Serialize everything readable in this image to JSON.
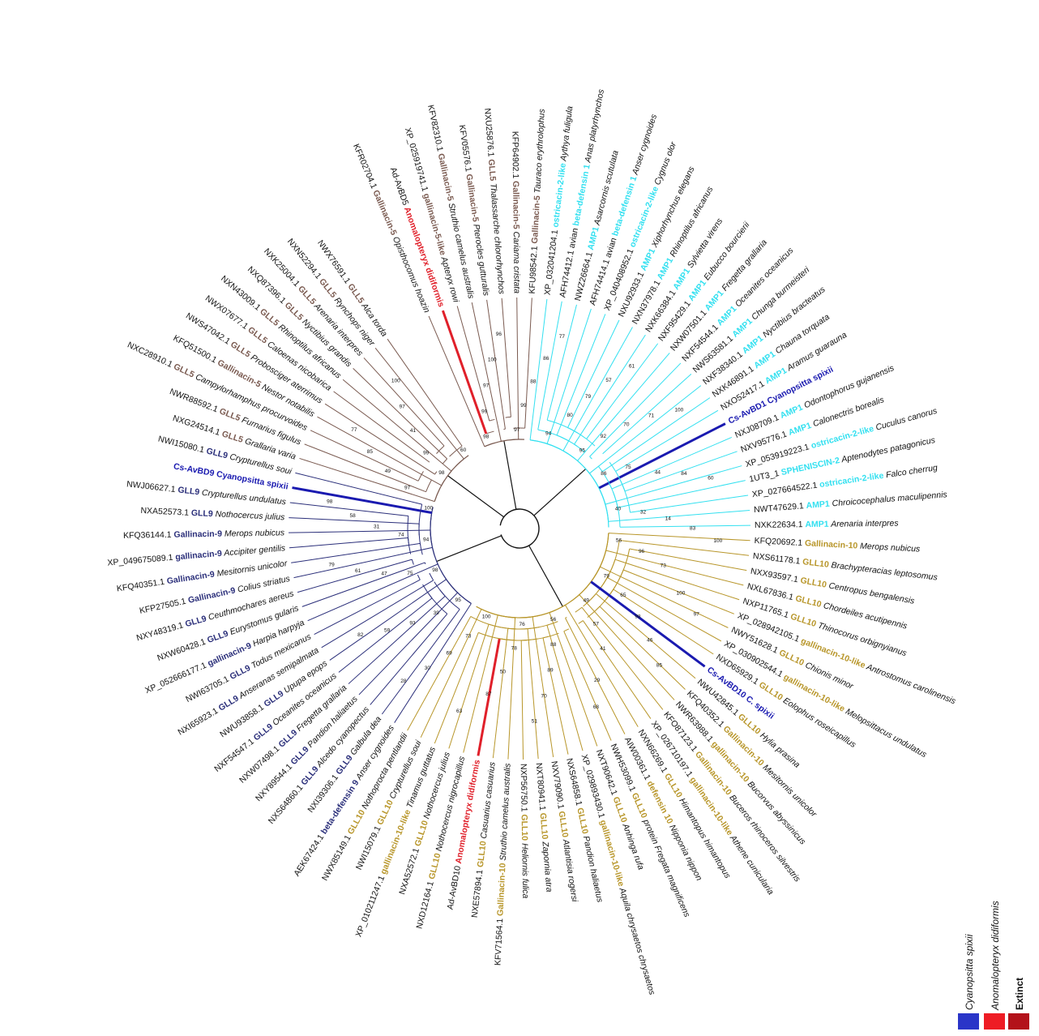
{
  "colors": {
    "clade_gll5": "#7a5a50",
    "clade_gll9": "#2b2f7a",
    "clade_ampl": "#33e0f0",
    "clade_gll10": "#b8962a",
    "highlight_spixii": "#1a1ab0",
    "highlight_extinct": "#e0202a",
    "trunk": "#111111"
  },
  "legend": {
    "items": [
      {
        "label": "Cyanopsitta spixii",
        "color": "#2a35c8"
      },
      {
        "label": "Anomalopteryx didiformis",
        "color": "#ee1c24"
      },
      {
        "label": "Extinct",
        "color": "#b3121a"
      }
    ]
  },
  "leaves": [
    {
      "acc": "KFR02704.1",
      "gene": "Gallinacin-5",
      "sp": "Opisthocomus hoazin",
      "clade": "gll5"
    },
    {
      "acc": "Ad-AvBD5",
      "gene": "Anomalopteryx didiformis",
      "sp": "",
      "clade": "extinct"
    },
    {
      "acc": "XP_025919741.1",
      "gene": "gallinacin-5-like",
      "sp": "Apteryx rowi",
      "clade": "gll5"
    },
    {
      "acc": "KFV82310.1",
      "gene": "Gallinacin-5",
      "sp": "Struthio camelus australis",
      "clade": "gll5"
    },
    {
      "acc": "KFV05576.1",
      "gene": "Gallinacin-5",
      "sp": "Pterocles gutturalis",
      "clade": "gll5"
    },
    {
      "acc": "NXU25876.1",
      "gene": "GLL5",
      "sp": "Thalassarche chlororhynchos",
      "clade": "gll5"
    },
    {
      "acc": "KFP64902.1",
      "gene": "Gallinacin-5",
      "sp": "Cariama cristata",
      "clade": "gll5"
    },
    {
      "acc": "KFU98542.1",
      "gene": "Gallinacin-5",
      "sp": "Tauraco erythrolophus",
      "clade": "gll5"
    },
    {
      "acc": "XP_032041204.1",
      "gene": "ostricacin-2-like",
      "sp": "Aythya fuligula",
      "clade": "ampl"
    },
    {
      "acc": "AFH74412.1 avian",
      "gene": "beta-defensin 1",
      "sp": "Anas platyrhynchos",
      "clade": "ampl"
    },
    {
      "acc": "NWZ26664.1",
      "gene": "AMP1",
      "sp": "Asarcornis scutulata",
      "clade": "ampl"
    },
    {
      "acc": "AFH74414.1 avian",
      "gene": "beta-defensin 1",
      "sp": "Anser cygnoides",
      "clade": "ampl"
    },
    {
      "acc": "XP_040408952.1",
      "gene": "ostricacin-2-like",
      "sp": "Cygnus olor",
      "clade": "ampl"
    },
    {
      "acc": "NXU92933.1",
      "gene": "AMP1",
      "sp": "Xiphorhynchus elegans",
      "clade": "ampl"
    },
    {
      "acc": "NXN37978.1",
      "gene": "AMP1",
      "sp": "Rhinoptilus africanus",
      "clade": "ampl"
    },
    {
      "acc": "NXK66384.1",
      "gene": "AMP1",
      "sp": "Sylvietta virens",
      "clade": "ampl"
    },
    {
      "acc": "NXF95429.1",
      "gene": "AMP1",
      "sp": "Eubucco bourcierii",
      "clade": "ampl"
    },
    {
      "acc": "NXW07501.1",
      "gene": "AMP1",
      "sp": "Fregetta grallaria",
      "clade": "ampl"
    },
    {
      "acc": "NXF54544.1",
      "gene": "AMP1",
      "sp": "Oceanites oceanicus",
      "clade": "ampl"
    },
    {
      "acc": "NWS63581.1",
      "gene": "AMP1",
      "sp": "Chunga burmeisteri",
      "clade": "ampl"
    },
    {
      "acc": "NXF38340.1",
      "gene": "AMP1",
      "sp": "Nyctibius bracteatus",
      "clade": "ampl"
    },
    {
      "acc": "NXK46891.1",
      "gene": "AMP1",
      "sp": "Chauna torquata",
      "clade": "ampl"
    },
    {
      "acc": "NXO52417.1",
      "gene": "AMP1",
      "sp": "Aramus guarauna",
      "clade": "ampl"
    },
    {
      "acc": "",
      "gene": "Cs-AvBD1 Cyanopsitta spixii",
      "sp": "",
      "clade": "spixii"
    },
    {
      "acc": "NXJ08709.1",
      "gene": "AMP1",
      "sp": "Odontophorus gujanensis",
      "clade": "ampl"
    },
    {
      "acc": "NXV95776.1",
      "gene": "AMP1",
      "sp": "Calonectris borealis",
      "clade": "ampl"
    },
    {
      "acc": "XP_053919223.1",
      "gene": "ostricacin-2-like",
      "sp": "Cuculus canorus",
      "clade": "ampl"
    },
    {
      "acc": "1UT3_1",
      "gene": "SPHENISCIN-2",
      "sp": "Aptenodytes patagonicus",
      "clade": "ampl"
    },
    {
      "acc": "XP_027664522.1",
      "gene": "ostricacin-2-like",
      "sp": "Falco cherrug",
      "clade": "ampl"
    },
    {
      "acc": "NWT47629.1",
      "gene": "AMP1",
      "sp": "Chroicocephalus maculipennis",
      "clade": "ampl"
    },
    {
      "acc": "NXK22634.1",
      "gene": "AMP1",
      "sp": "Arenaria interpres",
      "clade": "ampl"
    },
    {
      "acc": "KFQ20692.1",
      "gene": "Gallinacin-10",
      "sp": "Merops nubicus",
      "clade": "gll10"
    },
    {
      "acc": "NXS61178.1",
      "gene": "GLL10",
      "sp": "Brachypteracias leptosomus",
      "clade": "gll10"
    },
    {
      "acc": "NXX93597.1",
      "gene": "GLL10",
      "sp": "Centropus bengalensis",
      "clade": "gll10"
    },
    {
      "acc": "NXL67836.1",
      "gene": "GLL10",
      "sp": "Chordeiles acutipennis",
      "clade": "gll10"
    },
    {
      "acc": "NXP11765.1",
      "gene": "GLL10",
      "sp": "Thinocorus orbignyianus",
      "clade": "gll10"
    },
    {
      "acc": "XP_028942105.1",
      "gene": "gallinacin-10-like",
      "sp": "Antrostomus carolinensis",
      "clade": "gll10"
    },
    {
      "acc": "NWY51628.1",
      "gene": "GLL10",
      "sp": "Chionis minor",
      "clade": "gll10"
    },
    {
      "acc": "XP_030902544.1",
      "gene": "gallinacin-10-like",
      "sp": "Melopsittacus undulatus",
      "clade": "gll10"
    },
    {
      "acc": "NXD65929.1",
      "gene": "GLL10",
      "sp": "Eolophus roseicapillus",
      "clade": "gll10"
    },
    {
      "acc": "",
      "gene": "Cs-AvBD10 C. spixii",
      "sp": "",
      "clade": "spixii"
    },
    {
      "acc": "NWU42845.1",
      "gene": "GLL10",
      "sp": "Hylia prasina",
      "clade": "gll10"
    },
    {
      "acc": "KFQ40352.1",
      "gene": "Gallinacin-10",
      "sp": "Mesitornis unicolor",
      "clade": "gll10"
    },
    {
      "acc": "NWR63988.1",
      "gene": "gallinacin-10",
      "sp": "Bucorvus abyssinicus",
      "clade": "gll10"
    },
    {
      "acc": "KFO87123.1",
      "gene": "Gallinacin-10",
      "sp": "Buceros rhinoceros silvestris",
      "clade": "gll10"
    },
    {
      "acc": "XP_026710197.1",
      "gene": "gallinacin-10-like",
      "sp": "Athene cunicularia",
      "clade": "gll10"
    },
    {
      "acc": "NXN66269.1",
      "gene": "GLL10",
      "sp": "Himantopus himantopus",
      "clade": "gll10"
    },
    {
      "acc": "AIW00361.1",
      "gene": "defensin 10",
      "sp": "Nipponia nippon",
      "clade": "gll10"
    },
    {
      "acc": "NWH53099.1",
      "gene": "GLL10",
      "sp": "protein Fregata magnificens",
      "clade": "gll10"
    },
    {
      "acc": "NXT90642.1",
      "gene": "GLL10",
      "sp": "Anhinga rufa",
      "clade": "gll10"
    },
    {
      "acc": "XP_029893430.1",
      "gene": "gallinacin-10-like",
      "sp": "Aquila chrysaetos chrysaetos",
      "clade": "gll10"
    },
    {
      "acc": "NXS64858.1",
      "gene": "GLL10",
      "sp": "Pandion haliaetus",
      "clade": "gll10"
    },
    {
      "acc": "NXV79090.1",
      "gene": "GLL10",
      "sp": "Atlantisia rogersi",
      "clade": "gll10"
    },
    {
      "acc": "NXT80941.1",
      "gene": "GLL10",
      "sp": "Zapornia atra",
      "clade": "gll10"
    },
    {
      "acc": "NXP56750.1",
      "gene": "GLL10",
      "sp": "Heliornis fulica",
      "clade": "gll10"
    },
    {
      "acc": "KFV71564.1",
      "gene": "Gallinacin-10",
      "sp": "Struthio camelus australis",
      "clade": "gll10"
    },
    {
      "acc": "NXE57894.1",
      "gene": "GLL10",
      "sp": "Casuarius casuarius",
      "clade": "gll10"
    },
    {
      "acc": "Ad-AvBD10",
      "gene": "Anomalopteryx didiformis",
      "sp": "",
      "clade": "extinct"
    },
    {
      "acc": "NXD12164.1",
      "gene": "GLL10",
      "sp": "Nothocercus nigrocapillus",
      "clade": "gll10"
    },
    {
      "acc": "NXA52572.1",
      "gene": "GLL10",
      "sp": "Nothocercus julius",
      "clade": "gll10"
    },
    {
      "acc": "XP_010211247.1",
      "gene": "gallinacin-10-like",
      "sp": "Tinamus guttatus",
      "clade": "gll10"
    },
    {
      "acc": "NWI15079.1",
      "gene": "GLL10",
      "sp": "Crypturellus soui",
      "clade": "gll10"
    },
    {
      "acc": "NWX85149.1",
      "gene": "GLL10",
      "sp": "Nothoprocta pentlandii",
      "clade": "gll10"
    },
    {
      "acc": "AEK67424.1",
      "gene": "beta-defensin 9",
      "sp": "Anser cygnoides",
      "clade": "gll9"
    },
    {
      "acc": "NXI39306.1",
      "gene": "GLL9",
      "sp": "Galbula dea",
      "clade": "gll9"
    },
    {
      "acc": "NXS64860.1",
      "gene": "GLL9",
      "sp": "Alcedo cyanopectus",
      "clade": "gll9"
    },
    {
      "acc": "NXY89544.1",
      "gene": "GLL9",
      "sp": "Pandion haliaetus",
      "clade": "gll9"
    },
    {
      "acc": "NXW07498.1",
      "gene": "GLL9",
      "sp": "Fregetta grallaria",
      "clade": "gll9"
    },
    {
      "acc": "NXF54547.1",
      "gene": "GLL9",
      "sp": "Oceanites oceanicus",
      "clade": "gll9"
    },
    {
      "acc": "NWU93858.1",
      "gene": "GLL9",
      "sp": "Upupa epops",
      "clade": "gll9"
    },
    {
      "acc": "NXI65923.1",
      "gene": "GLL9",
      "sp": "Anseranas semipalmata",
      "clade": "gll9"
    },
    {
      "acc": "NWI63705.1",
      "gene": "GLL9",
      "sp": "Todus mexicanus",
      "clade": "gll9"
    },
    {
      "acc": "XP_052666177.1",
      "gene": "gallinacin-9",
      "sp": "Harpia harpyja",
      "clade": "gll9"
    },
    {
      "acc": "NXW60428.1",
      "gene": "GLL9",
      "sp": "Eurystomus gularis",
      "clade": "gll9"
    },
    {
      "acc": "NXY48319.1",
      "gene": "GLL9",
      "sp": "Ceuthmochares aereus",
      "clade": "gll9"
    },
    {
      "acc": "KFP27505.1",
      "gene": "Gallinacin-9",
      "sp": "Colius striatus",
      "clade": "gll9"
    },
    {
      "acc": "KFQ40351.1",
      "gene": "Gallinacin-9",
      "sp": "Mesitornis unicolor",
      "clade": "gll9"
    },
    {
      "acc": "XP_049675089.1",
      "gene": "gallinacin-9",
      "sp": "Accipiter gentilis",
      "clade": "gll9"
    },
    {
      "acc": "KFQ36144.1",
      "gene": "Gallinacin-9",
      "sp": "Merops nubicus",
      "clade": "gll9"
    },
    {
      "acc": "NXA52573.1",
      "gene": "GLL9",
      "sp": "Nothocercus julius",
      "clade": "gll9"
    },
    {
      "acc": "NWJ06627.1",
      "gene": "GLL9",
      "sp": "Crypturellus undulatus",
      "clade": "gll9"
    },
    {
      "acc": "",
      "gene": "Cs-AvBD9 Cyanopsitta spixii",
      "sp": "",
      "clade": "spixii"
    },
    {
      "acc": "NWI15080.1",
      "gene": "GLL9",
      "sp": "Crypturellus soui",
      "clade": "gll9"
    },
    {
      "acc": "NXG24514.1",
      "gene": "GLL5",
      "sp": "Grallaria varia",
      "clade": "gll5"
    },
    {
      "acc": "NWR88592.1",
      "gene": "GLL5",
      "sp": "Furnarius figulus",
      "clade": "gll5"
    },
    {
      "acc": "NXC28910.1",
      "gene": "GLL5",
      "sp": "Campylorhamphus procurvoides",
      "clade": "gll5"
    },
    {
      "acc": "KFQ51500.1",
      "gene": "Gallinacin-5",
      "sp": "Nestor notabilis",
      "clade": "gll5"
    },
    {
      "acc": "NWS47042.1",
      "gene": "GLL5",
      "sp": "Probosciger aterrimus",
      "clade": "gll5"
    },
    {
      "acc": "NWX07677.1",
      "gene": "GLL5",
      "sp": "Caloenas nicobarica",
      "clade": "gll5"
    },
    {
      "acc": "NXN43009.1",
      "gene": "GLL5",
      "sp": "Rhinoptilus africanus",
      "clade": "gll5"
    },
    {
      "acc": "NXQ87396.1",
      "gene": "GLL5",
      "sp": "Nyctibius grandis",
      "clade": "gll5"
    },
    {
      "acc": "NXK25004.1",
      "gene": "GLL5",
      "sp": "Arenaria interpres",
      "clade": "gll5"
    },
    {
      "acc": "NXN52294.1",
      "gene": "GLL5",
      "sp": "Rynchops niger",
      "clade": "gll5"
    },
    {
      "acc": "NWX76591.1",
      "gene": "GLL5",
      "sp": "Alca torda",
      "clade": "gll5"
    }
  ],
  "bootstrap": [
    "98",
    "99",
    "97",
    "100",
    "96",
    "97",
    "99",
    "88",
    "86",
    "77",
    "94",
    "80",
    "79",
    "57",
    "61",
    "95",
    "92",
    "70",
    "71",
    "100",
    "86",
    "75",
    "44",
    "84",
    "60",
    "40",
    "32",
    "14",
    "83",
    "100",
    "56",
    "96",
    "73",
    "100",
    "97",
    "79",
    "65",
    "98",
    "46",
    "85",
    "49",
    "57",
    "41",
    "29",
    "68",
    "56",
    "88",
    "89",
    "70",
    "51",
    "76",
    "78",
    "50",
    "87",
    "63",
    "100",
    "73",
    "69",
    "30",
    "28",
    "95",
    "39",
    "93",
    "59",
    "82",
    "98",
    "75",
    "47",
    "61",
    "79",
    "94",
    "74",
    "31",
    "58",
    "98",
    "100",
    "97",
    "49",
    "85",
    "77",
    "98",
    "99",
    "41",
    "97",
    "100",
    "60"
  ]
}
